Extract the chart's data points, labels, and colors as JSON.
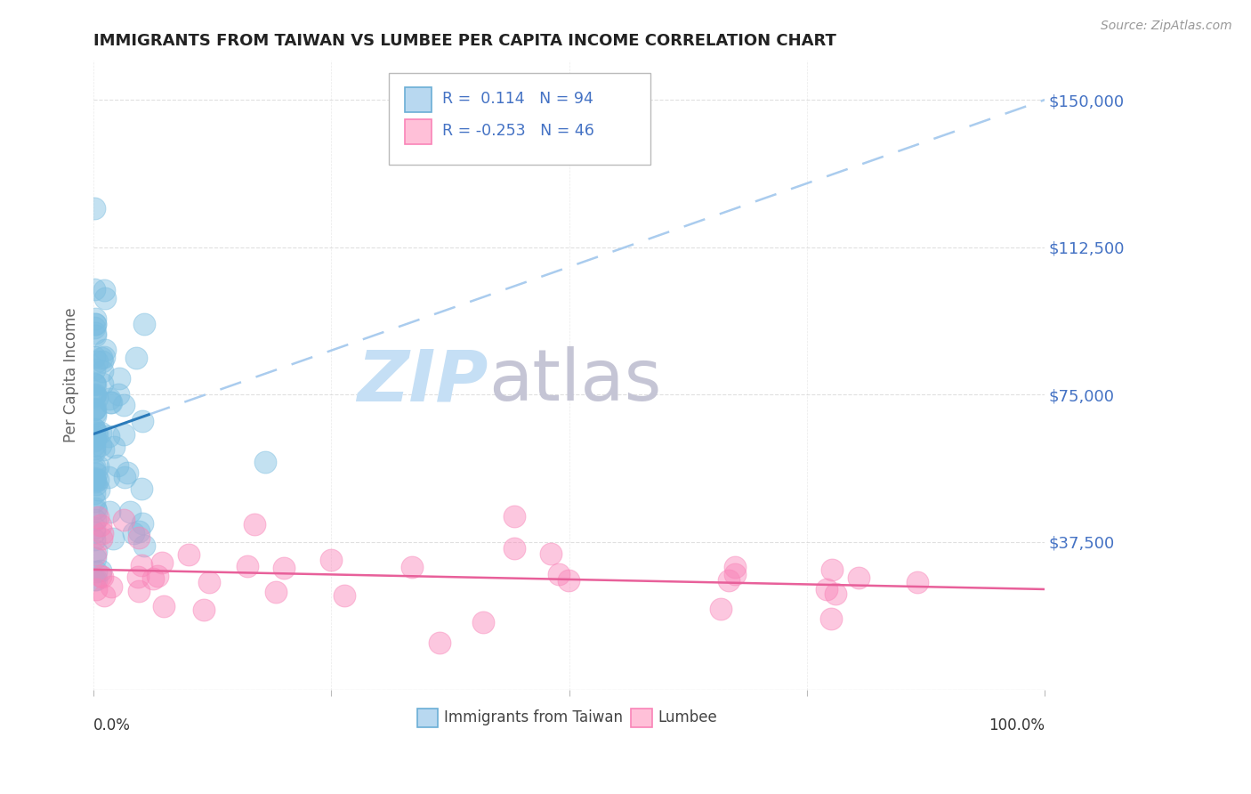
{
  "title": "IMMIGRANTS FROM TAIWAN VS LUMBEE PER CAPITA INCOME CORRELATION CHART",
  "source": "Source: ZipAtlas.com",
  "ylabel": "Per Capita Income",
  "yticks": [
    0,
    37500,
    75000,
    112500,
    150000
  ],
  "ytick_labels": [
    "",
    "$37,500",
    "$75,000",
    "$112,500",
    "$150,000"
  ],
  "xlim": [
    0.0,
    1.0
  ],
  "ylim": [
    0,
    160000
  ],
  "taiwan_R": 0.114,
  "taiwan_N": 94,
  "lumbee_R": -0.253,
  "lumbee_N": 46,
  "taiwan_color": "#7bbde0",
  "lumbee_color": "#f984b8",
  "taiwan_line_color": "#2b7bba",
  "lumbee_line_color": "#e8609a",
  "taiwan_dashed_color": "#aaccee",
  "watermark_zip_color": "#c5dff5",
  "watermark_atlas_color": "#c5c5d5",
  "background_color": "#ffffff",
  "grid_color": "#cccccc",
  "title_color": "#222222",
  "tick_label_color": "#4472c4",
  "taiwan_intercept": 65000,
  "taiwan_slope": 85000,
  "lumbee_intercept": 30500,
  "lumbee_slope": -5000
}
